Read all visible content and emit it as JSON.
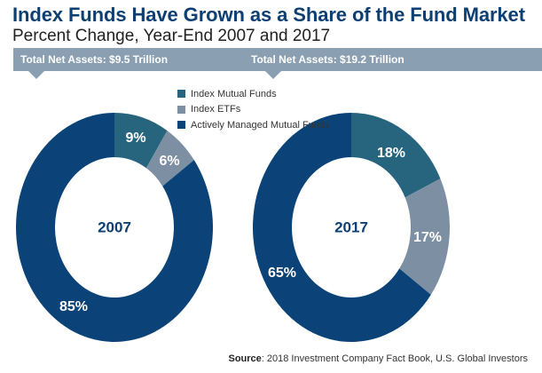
{
  "title": "Index Funds Have Grown as a Share of the Fund Market",
  "subtitle": "Percent Change, Year-End 2007 and 2017",
  "banner": {
    "left": "Total Net Assets: $9.5 Trillion",
    "right": "Total Net Assets: $19.2 Trillion"
  },
  "source": {
    "label": "Source",
    "text": ": 2018 Investment Company Fact Book, U.S. Global Investors"
  },
  "chart_data": [
    {
      "type": "pie",
      "title": "2007",
      "categories": [
        "Index Mutual Funds",
        "Index ETFs",
        "Actively Managed Mutual Funds"
      ],
      "values": [
        9,
        6,
        85
      ],
      "labels": [
        "9%",
        "6%",
        "85%"
      ],
      "colors": [
        "#27657f",
        "#7d8fa2",
        "#0b4379"
      ]
    },
    {
      "type": "pie",
      "title": "2017",
      "categories": [
        "Index Mutual Funds",
        "Index ETFs",
        "Actively Managed Mutual Funds"
      ],
      "values": [
        18,
        17,
        65
      ],
      "labels": [
        "18%",
        "17%",
        "65%"
      ],
      "colors": [
        "#27657f",
        "#7d8fa2",
        "#0b4379"
      ]
    }
  ],
  "legend": [
    {
      "label": "Index Mutual Funds",
      "color": "#27657f"
    },
    {
      "label": "Index ETFs",
      "color": "#7d8fa2"
    },
    {
      "label": "Actively Managed Mutual Funds",
      "color": "#0b4379"
    }
  ]
}
